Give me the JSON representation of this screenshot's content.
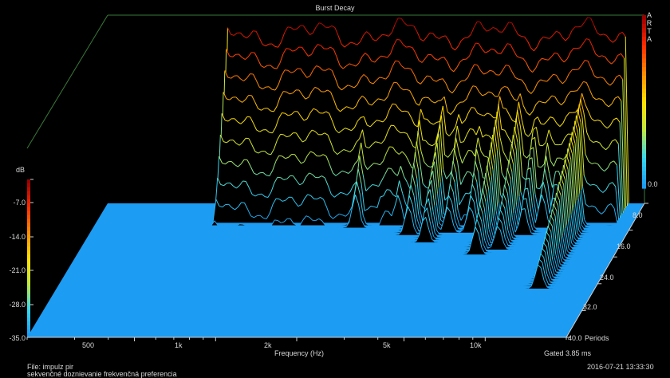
{
  "chart_data": {
    "type": "waterfall",
    "title": "Burst Decay",
    "brand_letters": [
      "A",
      "R",
      "T",
      "A"
    ],
    "zlabel": "dB",
    "zticks": [
      "0.0",
      "-7.0",
      "-14.0",
      "-21.0",
      "-28.0",
      "-35.0"
    ],
    "zlim": [
      -35,
      0
    ],
    "xlabel": "Frequency (Hz)",
    "x_scale": "log",
    "xlim": [
      200,
      20000
    ],
    "xticks": [
      {
        "value": 500,
        "label": "500"
      },
      {
        "value": 1000,
        "label": "1k"
      },
      {
        "value": 2000,
        "label": "2k"
      },
      {
        "value": 5000,
        "label": "5k"
      },
      {
        "value": 10000,
        "label": "10k"
      }
    ],
    "ylabel": "Periods",
    "yticks": [
      "0.0",
      "8.0",
      "16.0",
      "24.0",
      "32.0",
      "40.0"
    ],
    "ylim": [
      0,
      40
    ],
    "gated": "Gated 3.85 ms",
    "file": "File: impulz pir",
    "description": "sekvenčné doznievanie frekvenčná preferencia",
    "timestamp": "2016-07-21   13:33:30",
    "colormap": [
      "#1c9cf2",
      "#38d8ee",
      "#c0e840",
      "#ffe000",
      "#ff8c00",
      "#ff2a00",
      "#9a0000"
    ],
    "slice_count": 56,
    "decay_resonances": [
      {
        "freq": 1050,
        "periods": 6
      },
      {
        "freq": 1500,
        "periods": 5
      },
      {
        "freq": 1900,
        "periods": 8
      },
      {
        "freq": 2300,
        "periods": 6
      },
      {
        "freq": 2700,
        "periods": 7
      },
      {
        "freq": 3100,
        "periods": 10
      },
      {
        "freq": 3700,
        "periods": 12
      },
      {
        "freq": 4300,
        "periods": 9
      },
      {
        "freq": 5200,
        "periods": 9
      },
      {
        "freq": 6100,
        "periods": 16
      },
      {
        "freq": 7200,
        "periods": 14
      },
      {
        "freq": 8300,
        "periods": 10
      },
      {
        "freq": 9400,
        "periods": 8
      },
      {
        "freq": 10300,
        "periods": 7
      },
      {
        "freq": 12400,
        "periods": 26
      }
    ]
  }
}
